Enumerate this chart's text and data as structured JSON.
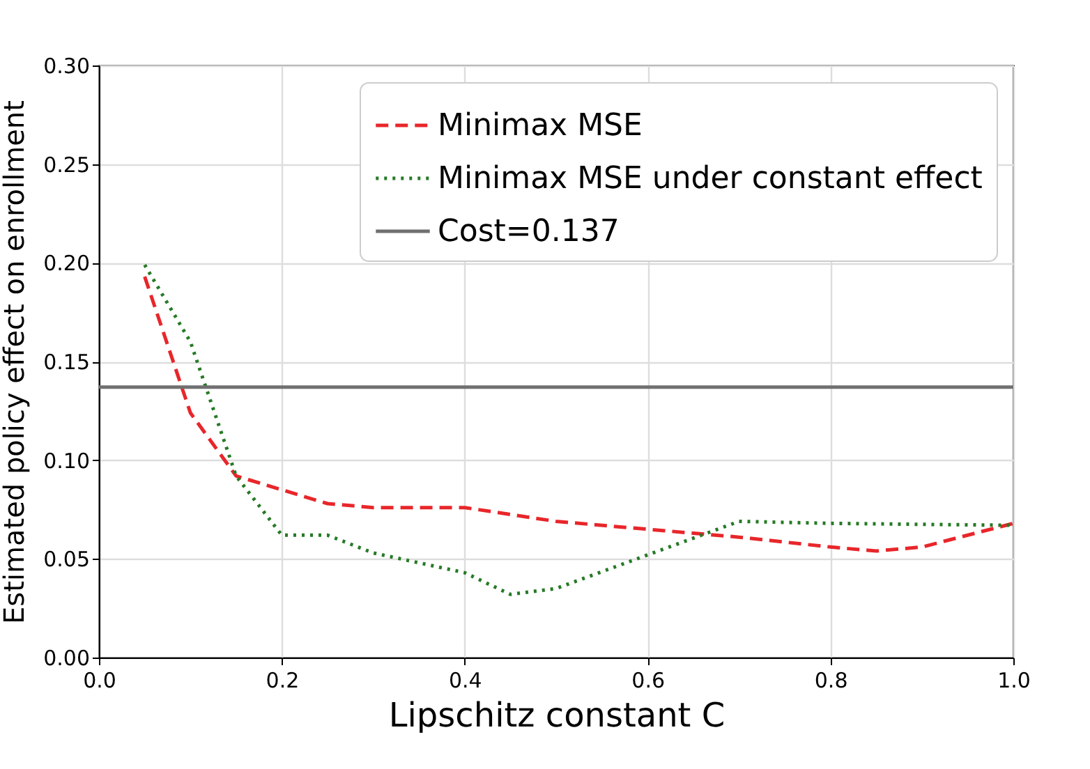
{
  "chart_data": {
    "type": "line",
    "xlabel": "Lipschitz constant C",
    "ylabel": "Estimated policy effect on enrollment",
    "series": [
      {
        "name": "Minimax MSE",
        "color": "#e8262a",
        "line_style": "dashed",
        "x": [
          0.05,
          0.1,
          0.15,
          0.2,
          0.25,
          0.3,
          0.4,
          0.5,
          0.6,
          0.7,
          0.8,
          0.85,
          0.9,
          1.0
        ],
        "values": [
          0.193,
          0.124,
          0.092,
          0.085,
          0.078,
          0.076,
          0.076,
          0.069,
          0.065,
          0.061,
          0.056,
          0.054,
          0.056,
          0.068
        ]
      },
      {
        "name": "Minimax MSE under constant effect",
        "color": "#267a26",
        "line_style": "dotted",
        "x": [
          0.05,
          0.1,
          0.15,
          0.2,
          0.25,
          0.3,
          0.4,
          0.45,
          0.5,
          0.6,
          0.7,
          0.8,
          1.0
        ],
        "values": [
          0.199,
          0.16,
          0.092,
          0.062,
          0.062,
          0.053,
          0.043,
          0.032,
          0.035,
          0.052,
          0.069,
          0.068,
          0.067
        ]
      }
    ],
    "ref_lines": [
      {
        "axis": "y",
        "value": 0.137,
        "label": "Cost=0.137",
        "color": "#707070",
        "line_style": "solid"
      }
    ],
    "xlim": [
      0.0,
      1.0
    ],
    "xticks": [
      {
        "value": 0,
        "label": "0.0"
      },
      0.2,
      0.4,
      0.6,
      0.8,
      {
        "value": 1,
        "label": "1.0"
      }
    ],
    "ylim": [
      0.0,
      0.3
    ],
    "yticks": [
      {
        "value": 0,
        "label": "0.00"
      },
      0.05,
      {
        "value": 0.1,
        "label": "0.10"
      },
      0.15,
      {
        "value": 0.2,
        "label": "0.20"
      },
      0.25,
      {
        "value": 0.3,
        "label": "0.30"
      }
    ],
    "grid": true,
    "legend": "top right"
  }
}
